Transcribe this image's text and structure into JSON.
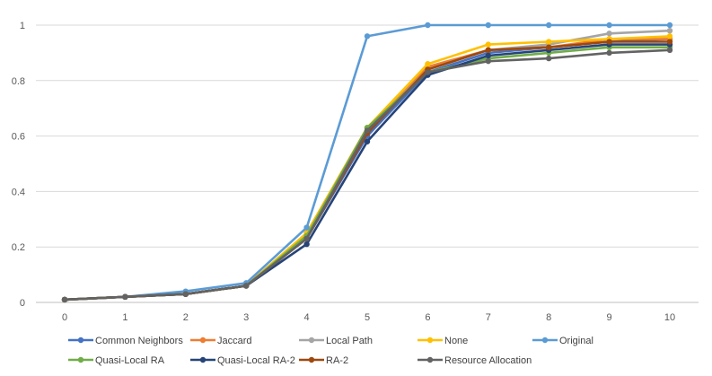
{
  "chart_data": {
    "type": "line",
    "title": "",
    "xlabel": "",
    "ylabel": "",
    "x": [
      0,
      1,
      2,
      3,
      4,
      5,
      6,
      7,
      8,
      9,
      10
    ],
    "x_tick_labels": [
      "0",
      "1",
      "2",
      "3",
      "4",
      "5",
      "6",
      "7",
      "8",
      "9",
      "10"
    ],
    "y_tick_labels": [
      "0",
      "0.2",
      "0.4",
      "0.6",
      "0.8",
      "1"
    ],
    "ylim": [
      0,
      1
    ],
    "gridlines": true,
    "legend_position": "bottom",
    "series": [
      {
        "name": "Common Neighbors",
        "color": "#4472C4",
        "values": [
          0.01,
          0.02,
          0.03,
          0.06,
          0.23,
          0.6,
          0.83,
          0.9,
          0.92,
          0.94,
          0.95
        ]
      },
      {
        "name": "Jaccard",
        "color": "#ED7D31",
        "values": [
          0.01,
          0.02,
          0.03,
          0.06,
          0.25,
          0.63,
          0.85,
          0.91,
          0.92,
          0.95,
          0.95
        ]
      },
      {
        "name": "Local Path",
        "color": "#A5A5A5",
        "values": [
          0.01,
          0.02,
          0.03,
          0.06,
          0.24,
          0.62,
          0.84,
          0.91,
          0.93,
          0.97,
          0.98
        ]
      },
      {
        "name": "None",
        "color": "#FFC000",
        "values": [
          0.01,
          0.02,
          0.03,
          0.06,
          0.25,
          0.63,
          0.86,
          0.93,
          0.94,
          0.95,
          0.96
        ]
      },
      {
        "name": "Original",
        "color": "#5B9BD5",
        "values": [
          0.01,
          0.02,
          0.04,
          0.07,
          0.27,
          0.96,
          1.0,
          1.0,
          1.0,
          1.0,
          1.0
        ]
      },
      {
        "name": "Quasi-Local RA",
        "color": "#70AD47",
        "values": [
          0.01,
          0.02,
          0.03,
          0.06,
          0.24,
          0.63,
          0.83,
          0.88,
          0.9,
          0.92,
          0.92
        ]
      },
      {
        "name": "Quasi-Local RA-2",
        "color": "#264478",
        "values": [
          0.01,
          0.02,
          0.03,
          0.06,
          0.21,
          0.58,
          0.82,
          0.89,
          0.91,
          0.93,
          0.93
        ]
      },
      {
        "name": "RA-2",
        "color": "#9E480E",
        "values": [
          0.01,
          0.02,
          0.03,
          0.06,
          0.23,
          0.61,
          0.84,
          0.91,
          0.92,
          0.94,
          0.94
        ]
      },
      {
        "name": "Resource Allocation",
        "color": "#636363",
        "values": [
          0.01,
          0.02,
          0.03,
          0.06,
          0.23,
          0.62,
          0.83,
          0.87,
          0.88,
          0.9,
          0.91
        ]
      }
    ]
  }
}
